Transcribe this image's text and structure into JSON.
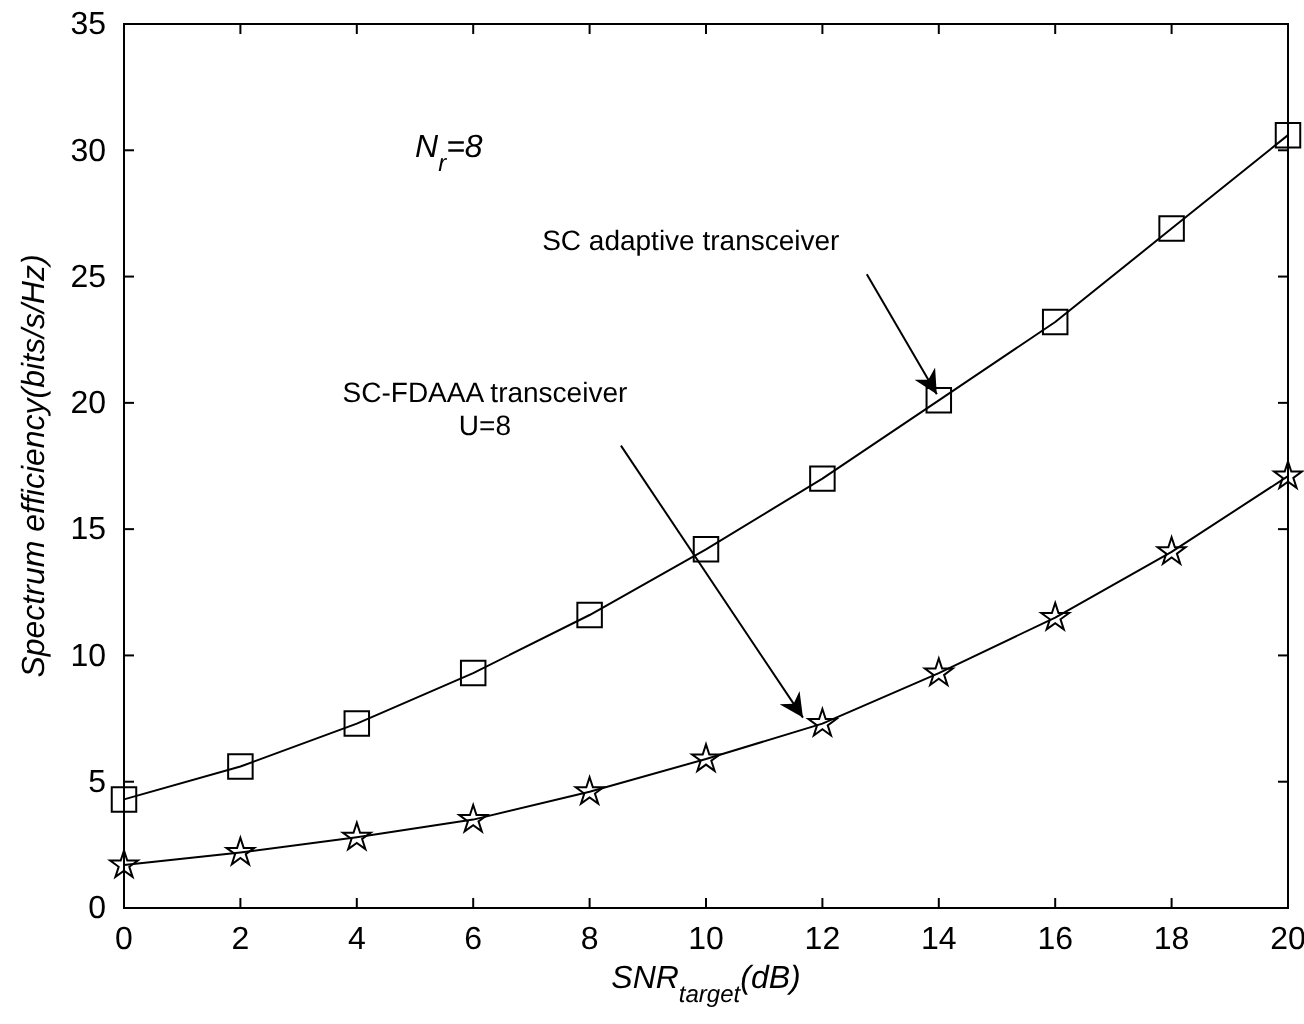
{
  "chart_data": {
    "type": "line",
    "xlabel": "SNR$_{target}$(dB)",
    "ylabel": "Spectrum efficiency(bits/s/Hz)",
    "x": [
      0,
      2,
      4,
      6,
      8,
      10,
      12,
      14,
      16,
      18,
      20
    ],
    "series": [
      {
        "color": "#000000",
        "marker": "square",
        "values": [
          4.3,
          5.6,
          7.3,
          9.3,
          11.6,
          14.2,
          17.0,
          20.1,
          23.2,
          26.9,
          30.6
        ]
      },
      {
        "color": "#000000",
        "marker": "star",
        "values": [
          1.7,
          2.2,
          2.8,
          3.5,
          4.6,
          5.9,
          7.3,
          9.3,
          11.5,
          14.1,
          17.1
        ]
      }
    ],
    "annotations": [
      "N$_{r}$=8",
      {
        "text": "SC adaptive transceiver",
        "x": 14,
        "y": 20.1
      },
      {
        "text": "SC-FDAAA transceiver\nU=8",
        "x": 11.7,
        "y": 7.3
      }
    ],
    "xlim": [
      0,
      20
    ],
    "xticks": [
      0,
      2,
      4,
      6,
      8,
      10,
      12,
      14,
      16,
      18,
      20
    ],
    "ylim": [
      0,
      35
    ],
    "yticks": [
      0,
      5,
      10,
      15,
      20,
      25,
      30,
      35
    ],
    "grid": false,
    "line_style": "solid"
  }
}
